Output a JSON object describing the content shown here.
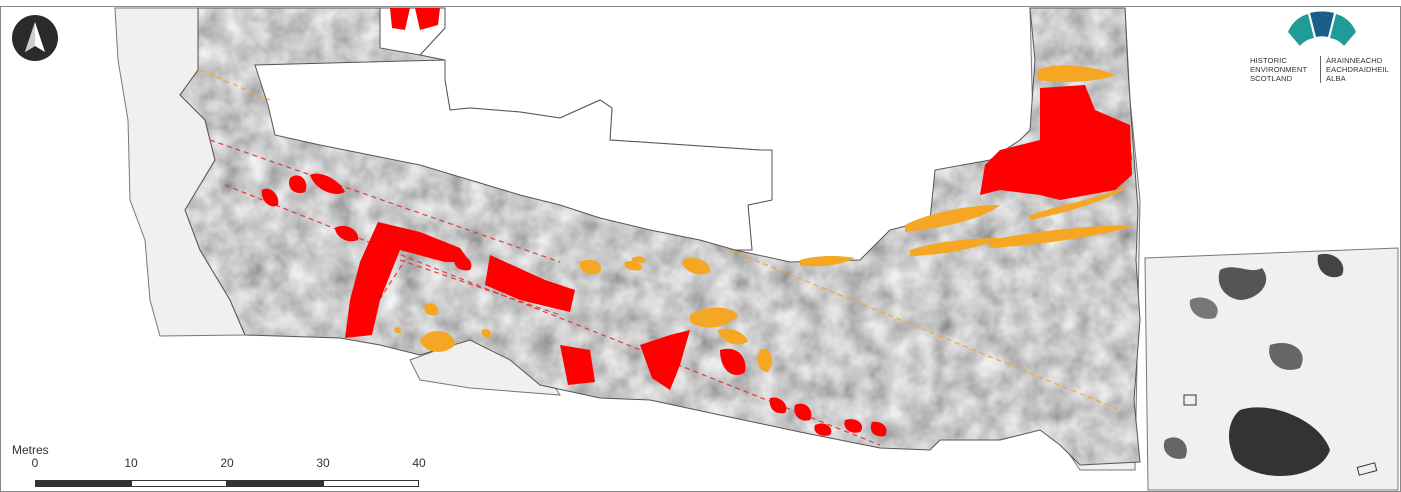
{
  "map": {
    "north_arrow_icon": "north-arrow-icon",
    "colors": {
      "survey_dark": "#2f2f2f",
      "survey_mid": "#8a8a8a",
      "survey_light": "#dcdcdc",
      "feature_red": "#ff0000",
      "feature_orange": "#f5a623",
      "annotation_red": "#e03c3c",
      "annotation_orange": "#f5a623",
      "unsurveyed": "#f0f0f0"
    }
  },
  "logo": {
    "icon": "historic-environment-scotland-logo-icon",
    "english": [
      "HISTORIC",
      "ENVIRONMENT",
      "SCOTLAND"
    ],
    "gaelic": [
      "ÀRAINNEACHD",
      "EACHDRAIDHEIL",
      "ALBA"
    ],
    "colors": [
      "#1f9c95",
      "#1c5e8a",
      "#1f9c95"
    ]
  },
  "scale_bar": {
    "title": "Metres",
    "ticks": [
      "0",
      "10",
      "20",
      "30",
      "40"
    ]
  }
}
